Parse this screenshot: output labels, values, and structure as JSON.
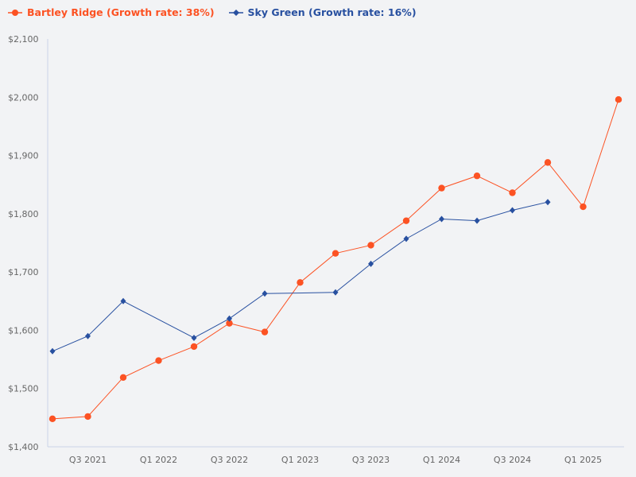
{
  "chart_data": {
    "type": "line",
    "categories": [
      "Q2 2021",
      "Q3 2021",
      "Q4 2021",
      "Q1 2022",
      "Q2 2022",
      "Q3 2022",
      "Q4 2022",
      "Q1 2023",
      "Q2 2023",
      "Q3 2023",
      "Q4 2023",
      "Q1 2024",
      "Q2 2024",
      "Q3 2024",
      "Q4 2024",
      "Q1 2025",
      "Q2 2025"
    ],
    "x_tick_labels": [
      "Q3 2021",
      "Q1 2022",
      "Q3 2022",
      "Q1 2023",
      "Q3 2023",
      "Q1 2024",
      "Q3 2024",
      "Q1 2025"
    ],
    "y_tick_labels": [
      "$1,400",
      "$1,500",
      "$1,600",
      "$1,700",
      "$1,800",
      "$1,900",
      "$2,000",
      "$2,100"
    ],
    "ylim": [
      1400,
      2100
    ],
    "grid": false,
    "legend_position": "top-left",
    "series": [
      {
        "name": "Bartley Ridge (Growth rate: 38%)",
        "color": "#fc5223",
        "marker": "circle",
        "values": [
          1448,
          1452,
          1519,
          1548,
          1572,
          1612,
          1597,
          1682,
          1732,
          1746,
          1788,
          1844,
          1865,
          1836,
          1888,
          1812,
          1996
        ]
      },
      {
        "name": "Sky Green (Growth rate: 16%)",
        "color": "#2850a0",
        "marker": "diamond",
        "values": [
          1564,
          1590,
          1650,
          null,
          1587,
          1620,
          1663,
          null,
          1665,
          1714,
          1757,
          1791,
          1788,
          1806,
          1820,
          null,
          null
        ]
      }
    ]
  }
}
